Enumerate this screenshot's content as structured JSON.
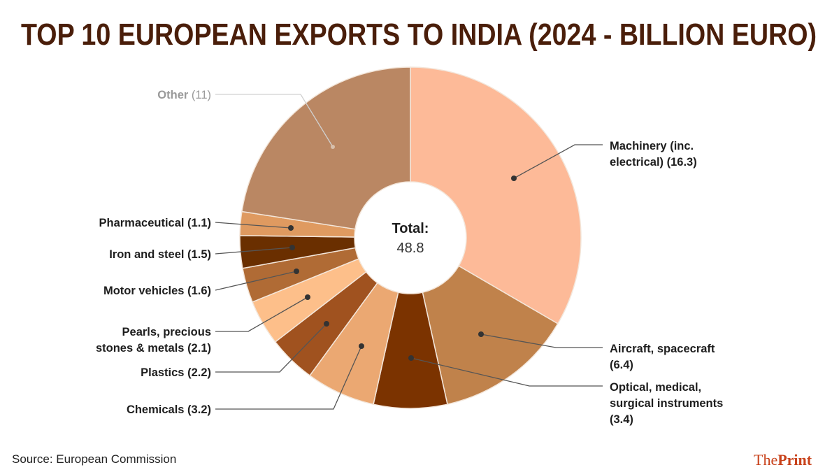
{
  "chart_data": {
    "type": "pie",
    "variant": "donut",
    "title": "TOP 10 EUROPEAN EXPORTS TO INDIA (2024 - BILLION EURO)",
    "center_label": {
      "title": "Total:",
      "value": "48.8"
    },
    "slices": [
      {
        "label": [
          "Machinery (inc.",
          "electrical) (16.3)"
        ],
        "value": 16.3,
        "color": "#FDBA98"
      },
      {
        "label": [
          "Aircraft, spacecraft",
          "(6.4)"
        ],
        "value": 6.4,
        "color": "#C0824B"
      },
      {
        "label": [
          "Optical, medical,",
          "surgical instruments",
          "(3.4)"
        ],
        "value": 3.4,
        "color": "#7B3300"
      },
      {
        "label": [
          "Chemicals (3.2)"
        ],
        "value": 3.2,
        "color": "#EBA872"
      },
      {
        "label": [
          "Plastics (2.2)"
        ],
        "value": 2.2,
        "color": "#A0521F"
      },
      {
        "label": [
          "Pearls, precious",
          "stones & metals (2.1)"
        ],
        "value": 2.1,
        "color": "#FDBF8A"
      },
      {
        "label": [
          "Motor vehicles (1.6)"
        ],
        "value": 1.6,
        "color": "#B06B35"
      },
      {
        "label": [
          "Iron and steel (1.5)"
        ],
        "value": 1.5,
        "color": "#6A2F00"
      },
      {
        "label": [
          "Pharmaceutical (1.1)"
        ],
        "value": 1.1,
        "color": "#DF9A60"
      },
      {
        "label": [
          "Other (11)"
        ],
        "value": 11,
        "color": "#BA8763"
      }
    ]
  },
  "footer": {
    "source": "Source: European Commission",
    "brand_the": "The",
    "brand_print": "Print"
  },
  "colors": {
    "title": "#4A1E0A",
    "brand": "#C8421B"
  }
}
